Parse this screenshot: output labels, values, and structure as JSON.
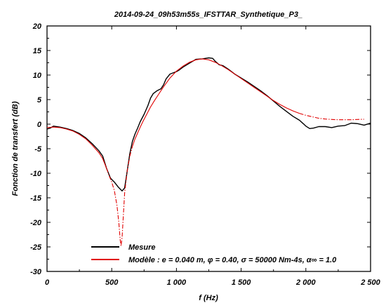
{
  "chart_data": {
    "type": "line",
    "title": "2014-09-24_09h53m55s_IFSTTAR_Synthetique_P3_",
    "xlabel": "f (Hz)",
    "ylabel": "Fonction de transfert (dB)",
    "xlim": [
      0,
      2500
    ],
    "ylim": [
      -30,
      20
    ],
    "x_ticks": [
      0,
      500,
      1000,
      1500,
      2000,
      2500
    ],
    "x_tick_labels": [
      "0",
      "500",
      "1 000",
      "1 500",
      "2 000",
      "2 500"
    ],
    "y_ticks": [
      20,
      15,
      10,
      5,
      0,
      -5,
      -10,
      -15,
      -20,
      -25,
      -30
    ],
    "y_tick_labels": [
      "20",
      "15",
      "10",
      "5",
      "0",
      "-5",
      "-10",
      "-15",
      "-20",
      "-25",
      "-30"
    ],
    "grid": false,
    "legend_position": "bottom-left",
    "series": [
      {
        "name": "Mesure",
        "color": "#000000",
        "style": "solid",
        "points": [
          [
            0,
            -1.0
          ],
          [
            25,
            -0.8
          ],
          [
            50,
            -0.4
          ],
          [
            100,
            -0.6
          ],
          [
            150,
            -0.9
          ],
          [
            200,
            -1.3
          ],
          [
            250,
            -1.9
          ],
          [
            300,
            -2.8
          ],
          [
            350,
            -4.0
          ],
          [
            400,
            -5.4
          ],
          [
            430,
            -6.5
          ],
          [
            460,
            -9.0
          ],
          [
            490,
            -11.0
          ],
          [
            520,
            -11.8
          ],
          [
            550,
            -12.8
          ],
          [
            580,
            -13.6
          ],
          [
            600,
            -13.0
          ],
          [
            620,
            -9.5
          ],
          [
            640,
            -6.0
          ],
          [
            660,
            -3.5
          ],
          [
            680,
            -2.0
          ],
          [
            700,
            -0.8
          ],
          [
            720,
            0.5
          ],
          [
            750,
            2.0
          ],
          [
            780,
            3.8
          ],
          [
            800,
            5.3
          ],
          [
            820,
            6.2
          ],
          [
            850,
            6.8
          ],
          [
            880,
            7.2
          ],
          [
            900,
            8.0
          ],
          [
            920,
            9.2
          ],
          [
            950,
            10.2
          ],
          [
            980,
            10.5
          ],
          [
            1000,
            10.7
          ],
          [
            1020,
            11.0
          ],
          [
            1050,
            11.6
          ],
          [
            1100,
            12.4
          ],
          [
            1150,
            13.2
          ],
          [
            1200,
            13.3
          ],
          [
            1250,
            13.5
          ],
          [
            1280,
            13.4
          ],
          [
            1300,
            12.8
          ],
          [
            1330,
            12.1
          ],
          [
            1360,
            11.9
          ],
          [
            1400,
            11.2
          ],
          [
            1450,
            10.2
          ],
          [
            1500,
            9.4
          ],
          [
            1550,
            8.6
          ],
          [
            1600,
            7.7
          ],
          [
            1650,
            6.8
          ],
          [
            1700,
            5.8
          ],
          [
            1750,
            4.7
          ],
          [
            1800,
            3.6
          ],
          [
            1850,
            2.6
          ],
          [
            1900,
            1.6
          ],
          [
            1950,
            0.8
          ],
          [
            1980,
            0.1
          ],
          [
            2000,
            -0.4
          ],
          [
            2030,
            -0.9
          ],
          [
            2060,
            -0.8
          ],
          [
            2100,
            -0.5
          ],
          [
            2150,
            -0.5
          ],
          [
            2200,
            -0.7
          ],
          [
            2250,
            -0.4
          ],
          [
            2300,
            -0.3
          ],
          [
            2350,
            0.2
          ],
          [
            2400,
            0.1
          ],
          [
            2450,
            -0.2
          ],
          [
            2500,
            0.2
          ]
        ]
      },
      {
        "name": "Modèle : e = 0.040 m, φ = 0.40, σ = 50000 Nm-4s, α∞ = 1.0",
        "color": "#e00000",
        "style": "solid-then-dashdot",
        "points": [
          [
            0,
            -0.7
          ],
          [
            50,
            -0.6
          ],
          [
            100,
            -0.7
          ],
          [
            150,
            -1.0
          ],
          [
            200,
            -1.4
          ],
          [
            250,
            -2.1
          ],
          [
            300,
            -3.0
          ],
          [
            350,
            -4.3
          ],
          [
            400,
            -5.8
          ],
          [
            430,
            -7.0
          ],
          [
            460,
            -9.0
          ],
          [
            480,
            -10.5
          ],
          [
            500,
            -11.8
          ],
          [
            520,
            -13.5
          ],
          [
            540,
            -16.5
          ],
          [
            555,
            -20.0
          ],
          [
            565,
            -23.5
          ],
          [
            572,
            -24.8
          ],
          [
            580,
            -23.0
          ],
          [
            590,
            -18.5
          ],
          [
            600,
            -14.0
          ],
          [
            620,
            -9.5
          ],
          [
            640,
            -6.5
          ],
          [
            660,
            -4.5
          ],
          [
            680,
            -3.0
          ],
          [
            700,
            -1.8
          ],
          [
            720,
            -0.6
          ],
          [
            740,
            0.5
          ],
          [
            770,
            2.0
          ],
          [
            800,
            3.5
          ],
          [
            830,
            4.8
          ],
          [
            860,
            6.0
          ],
          [
            900,
            7.6
          ],
          [
            950,
            9.4
          ],
          [
            1000,
            10.8
          ],
          [
            1050,
            11.8
          ],
          [
            1100,
            12.6
          ],
          [
            1150,
            13.1
          ],
          [
            1200,
            13.3
          ],
          [
            1250,
            13.1
          ],
          [
            1300,
            12.6
          ],
          [
            1350,
            11.9
          ],
          [
            1400,
            11.1
          ],
          [
            1450,
            10.2
          ],
          [
            1500,
            9.3
          ],
          [
            1550,
            8.4
          ],
          [
            1600,
            7.5
          ],
          [
            1650,
            6.6
          ],
          [
            1700,
            5.7
          ],
          [
            1750,
            4.8
          ],
          [
            1800,
            4.0
          ],
          [
            1850,
            3.3
          ],
          [
            1900,
            2.7
          ],
          [
            1950,
            2.2
          ],
          [
            2000,
            1.8
          ],
          [
            2050,
            1.5
          ],
          [
            2100,
            1.2
          ],
          [
            2150,
            1.05
          ],
          [
            2200,
            0.95
          ],
          [
            2250,
            0.9
          ],
          [
            2300,
            0.9
          ],
          [
            2350,
            0.9
          ],
          [
            2400,
            0.95
          ],
          [
            2450,
            1.0
          ]
        ],
        "dashed_x_ranges": [
          [
            460,
            660
          ],
          [
            1950,
            2450
          ]
        ]
      }
    ]
  }
}
